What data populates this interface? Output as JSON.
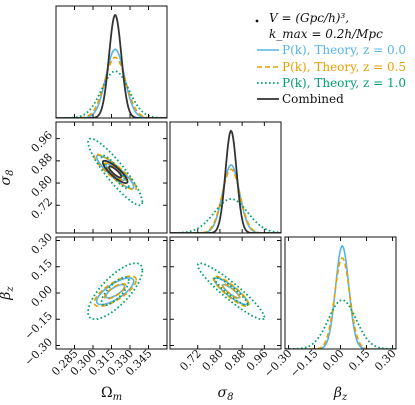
{
  "chart_data": {
    "type": "corner",
    "parameters": [
      {
        "id": "omega_m",
        "label": "Ω",
        "sub": "m",
        "range": [
          0.27,
          0.36
        ],
        "ticks": [
          0.285,
          0.3,
          0.315,
          0.33,
          0.345
        ],
        "tick_labels": [
          "0.285",
          "0.300",
          "0.315",
          "0.330",
          "0.345"
        ]
      },
      {
        "id": "sigma8",
        "label": "σ",
        "sub": "8",
        "range": [
          0.62,
          1.02
        ],
        "ticks": [
          0.72,
          0.8,
          0.88,
          0.96
        ],
        "tick_labels": [
          "0.72",
          "0.80",
          "0.88",
          "0.96"
        ]
      },
      {
        "id": "beta_z",
        "label": "β",
        "sub": "z",
        "range": [
          -0.32,
          0.32
        ],
        "ticks": [
          -0.3,
          -0.15,
          0.0,
          0.15,
          0.3
        ],
        "tick_labels": [
          "−0.30",
          "−0.15",
          "0.00",
          "0.15",
          "0.30"
        ]
      }
    ],
    "legend": {
      "note_line1": "V = (Gpc/h)³,",
      "note_line2": "k_max = 0.2h/Mpc",
      "entries": [
        {
          "text": "P(k), Theory, z = 0.0",
          "color": "#56b4e9",
          "dash": "solid"
        },
        {
          "text": "P(k), Theory, z = 0.5",
          "color": "#e69f00",
          "dash": "dashed"
        },
        {
          "text": "P(k), Theory, z = 1.0",
          "color": "#009e73",
          "dash": "dotted"
        },
        {
          "text": "Combined",
          "color": "#333333",
          "dash": "solid"
        }
      ]
    },
    "series": [
      {
        "name": "P(k), Theory, z=0.0",
        "color": "#56b4e9",
        "dash": "",
        "width": 1.6,
        "mean": [
          0.318,
          0.84,
          0.01
        ],
        "sigma": [
          0.0075,
          0.03,
          0.038
        ],
        "rho": {
          "omega_m-sigma8": -0.9,
          "omega_m-beta_z": 0.75,
          "sigma8-beta_z": -0.88
        }
      },
      {
        "name": "P(k), Theory, z=0.5",
        "color": "#e69f00",
        "dash": "5,3",
        "width": 1.6,
        "mean": [
          0.318,
          0.84,
          0.01
        ],
        "sigma": [
          0.0085,
          0.032,
          0.043
        ],
        "rho": {
          "omega_m-sigma8": -0.9,
          "omega_m-beta_z": 0.75,
          "sigma8-beta_z": -0.88
        }
      },
      {
        "name": "P(k), Theory, z=1.0",
        "color": "#009e73",
        "dash": "1.6,2.4",
        "width": 1.8,
        "mean": [
          0.318,
          0.84,
          0.01
        ],
        "sigma": [
          0.011,
          0.06,
          0.08
        ],
        "rho": {
          "omega_m-sigma8": -0.9,
          "omega_m-beta_z": 0.75,
          "sigma8-beta_z": -0.93
        }
      },
      {
        "name": "Combined",
        "color": "#333333",
        "dash": "",
        "width": 1.8,
        "mean": [
          0.318,
          0.84,
          0.01
        ],
        "sigma": [
          0.005,
          0.02,
          0.03
        ],
        "rho": {
          "omega_m-sigma8": -0.85,
          "omega_m-beta_z": 0.0,
          "sigma8-beta_z": 0.0
        },
        "skip_2d": [
          "omega_m-beta_z",
          "sigma8-beta_z"
        ],
        "skip_1d": [
          "beta_z"
        ]
      }
    ],
    "contour_levels_sigma": [
      1,
      2
    ]
  }
}
